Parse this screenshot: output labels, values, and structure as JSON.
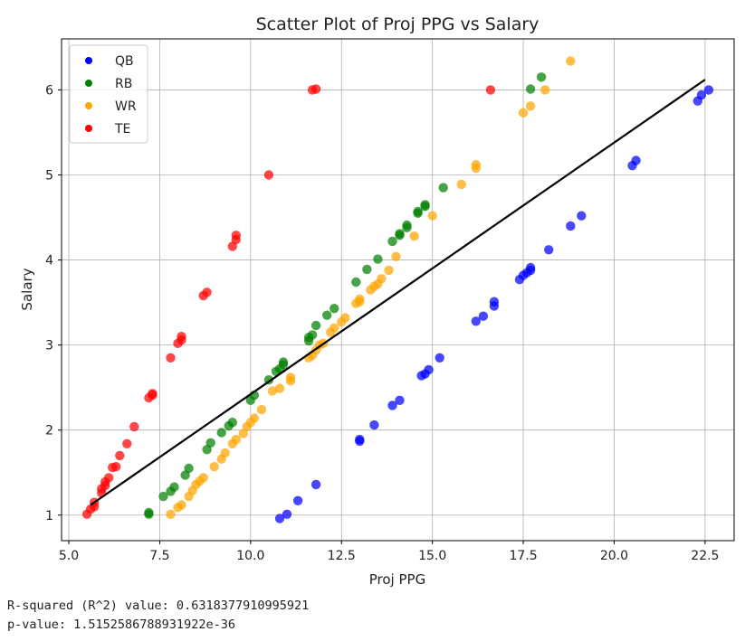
{
  "stats": {
    "r2_line": "R-squared (R^2) value: 0.6318377910995921",
    "p_line": "p-value: 1.5152586788931922e-36"
  },
  "chart_data": {
    "type": "scatter",
    "title": "Scatter Plot of Proj PPG vs Salary",
    "xlabel": "Proj PPG",
    "ylabel": "Salary",
    "xlim": [
      4.8,
      23.3
    ],
    "ylim": [
      0.7,
      6.6
    ],
    "xticks": [
      "5.0",
      "7.5",
      "10.0",
      "12.5",
      "15.0",
      "17.5",
      "20.0",
      "22.5"
    ],
    "yticks": [
      "1",
      "2",
      "3",
      "4",
      "5",
      "6"
    ],
    "grid": true,
    "legend_position": "top-left",
    "series": [
      {
        "name": "QB",
        "color": "#0000ff",
        "points": [
          [
            10.8,
            0.96
          ],
          [
            11.0,
            1.01
          ],
          [
            11.3,
            1.17
          ],
          [
            11.8,
            1.36
          ],
          [
            13.0,
            1.87
          ],
          [
            13.0,
            1.89
          ],
          [
            13.4,
            2.06
          ],
          [
            13.9,
            2.29
          ],
          [
            14.1,
            2.35
          ],
          [
            14.7,
            2.64
          ],
          [
            14.8,
            2.66
          ],
          [
            14.9,
            2.71
          ],
          [
            15.2,
            2.85
          ],
          [
            16.2,
            3.28
          ],
          [
            16.4,
            3.34
          ],
          [
            16.7,
            3.46
          ],
          [
            16.7,
            3.51
          ],
          [
            17.4,
            3.77
          ],
          [
            17.5,
            3.82
          ],
          [
            17.6,
            3.85
          ],
          [
            17.7,
            3.88
          ],
          [
            17.7,
            3.91
          ],
          [
            18.2,
            4.12
          ],
          [
            18.8,
            4.4
          ],
          [
            19.1,
            4.52
          ],
          [
            20.5,
            5.11
          ],
          [
            20.6,
            5.17
          ],
          [
            22.3,
            5.87
          ],
          [
            22.4,
            5.94
          ],
          [
            22.6,
            6.0
          ]
        ]
      },
      {
        "name": "RB",
        "color": "#008000",
        "points": [
          [
            7.2,
            1.01
          ],
          [
            7.2,
            1.03
          ],
          [
            7.6,
            1.22
          ],
          [
            7.8,
            1.28
          ],
          [
            7.9,
            1.33
          ],
          [
            8.2,
            1.47
          ],
          [
            8.3,
            1.55
          ],
          [
            8.8,
            1.77
          ],
          [
            8.9,
            1.85
          ],
          [
            9.2,
            1.97
          ],
          [
            9.4,
            2.05
          ],
          [
            9.5,
            2.09
          ],
          [
            10.0,
            2.35
          ],
          [
            10.1,
            2.41
          ],
          [
            10.5,
            2.59
          ],
          [
            10.7,
            2.69
          ],
          [
            10.8,
            2.72
          ],
          [
            10.9,
            2.77
          ],
          [
            10.9,
            2.8
          ],
          [
            11.6,
            3.05
          ],
          [
            11.6,
            3.09
          ],
          [
            11.7,
            3.12
          ],
          [
            11.8,
            3.23
          ],
          [
            12.1,
            3.35
          ],
          [
            12.3,
            3.43
          ],
          [
            12.9,
            3.74
          ],
          [
            13.2,
            3.89
          ],
          [
            13.5,
            4.01
          ],
          [
            13.9,
            4.22
          ],
          [
            14.1,
            4.29
          ],
          [
            14.1,
            4.31
          ],
          [
            14.3,
            4.38
          ],
          [
            14.3,
            4.41
          ],
          [
            14.6,
            4.55
          ],
          [
            14.6,
            4.57
          ],
          [
            14.8,
            4.63
          ],
          [
            14.8,
            4.65
          ],
          [
            15.3,
            4.85
          ],
          [
            17.7,
            6.01
          ],
          [
            18.0,
            6.15
          ]
        ]
      },
      {
        "name": "WR",
        "color": "#ffa500",
        "points": [
          [
            7.8,
            1.01
          ],
          [
            8.0,
            1.09
          ],
          [
            8.1,
            1.12
          ],
          [
            8.3,
            1.22
          ],
          [
            8.4,
            1.29
          ],
          [
            8.5,
            1.36
          ],
          [
            8.6,
            1.4
          ],
          [
            8.7,
            1.44
          ],
          [
            9.0,
            1.57
          ],
          [
            9.2,
            1.66
          ],
          [
            9.3,
            1.73
          ],
          [
            9.5,
            1.84
          ],
          [
            9.6,
            1.89
          ],
          [
            9.8,
            1.96
          ],
          [
            9.9,
            2.04
          ],
          [
            10.0,
            2.09
          ],
          [
            10.1,
            2.14
          ],
          [
            10.3,
            2.24
          ],
          [
            10.6,
            2.46
          ],
          [
            10.8,
            2.49
          ],
          [
            11.1,
            2.58
          ],
          [
            11.1,
            2.62
          ],
          [
            11.6,
            2.85
          ],
          [
            11.7,
            2.88
          ],
          [
            11.8,
            2.94
          ],
          [
            11.9,
            3.0
          ],
          [
            12.0,
            3.02
          ],
          [
            12.2,
            3.15
          ],
          [
            12.3,
            3.2
          ],
          [
            12.5,
            3.27
          ],
          [
            12.6,
            3.32
          ],
          [
            12.9,
            3.49
          ],
          [
            13.0,
            3.51
          ],
          [
            13.0,
            3.54
          ],
          [
            13.3,
            3.65
          ],
          [
            13.4,
            3.69
          ],
          [
            13.5,
            3.72
          ],
          [
            13.6,
            3.78
          ],
          [
            13.8,
            3.88
          ],
          [
            14.0,
            4.04
          ],
          [
            14.5,
            4.28
          ],
          [
            15.0,
            4.52
          ],
          [
            15.8,
            4.89
          ],
          [
            16.2,
            5.08
          ],
          [
            16.2,
            5.12
          ],
          [
            17.5,
            5.73
          ],
          [
            17.7,
            5.81
          ],
          [
            18.1,
            6.0
          ],
          [
            18.8,
            6.34
          ]
        ]
      },
      {
        "name": "TE",
        "color": "#ff0000",
        "points": [
          [
            5.5,
            1.01
          ],
          [
            5.6,
            1.07
          ],
          [
            5.7,
            1.1
          ],
          [
            5.7,
            1.15
          ],
          [
            5.9,
            1.26
          ],
          [
            5.9,
            1.31
          ],
          [
            6.0,
            1.35
          ],
          [
            6.0,
            1.39
          ],
          [
            6.1,
            1.44
          ],
          [
            6.2,
            1.56
          ],
          [
            6.3,
            1.57
          ],
          [
            6.4,
            1.7
          ],
          [
            6.6,
            1.84
          ],
          [
            6.8,
            2.04
          ],
          [
            7.2,
            2.38
          ],
          [
            7.3,
            2.41
          ],
          [
            7.3,
            2.43
          ],
          [
            7.8,
            2.85
          ],
          [
            8.0,
            3.02
          ],
          [
            8.1,
            3.06
          ],
          [
            8.1,
            3.1
          ],
          [
            8.7,
            3.58
          ],
          [
            8.8,
            3.62
          ],
          [
            9.5,
            4.16
          ],
          [
            9.6,
            4.24
          ],
          [
            9.6,
            4.29
          ],
          [
            10.5,
            5.0
          ],
          [
            11.7,
            6.0
          ],
          [
            11.8,
            6.01
          ],
          [
            16.6,
            6.0
          ]
        ]
      }
    ],
    "regression_line": {
      "x": [
        5.6,
        22.5
      ],
      "y": [
        1.12,
        6.12
      ],
      "color": "#000000"
    }
  }
}
